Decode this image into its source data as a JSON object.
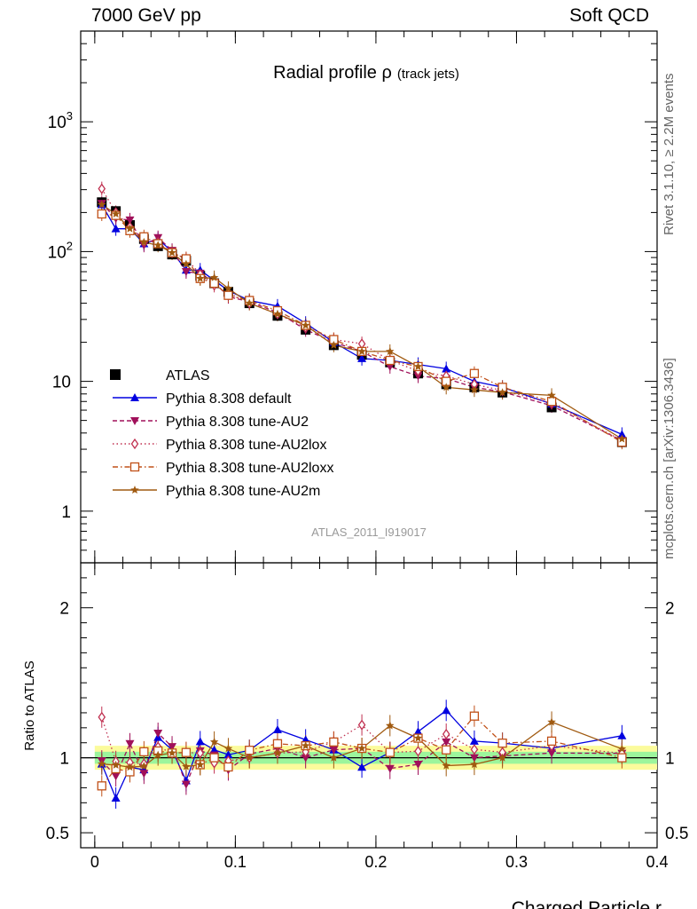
{
  "header": {
    "left": "7000 GeV pp",
    "right": "Soft QCD"
  },
  "side_labels": {
    "rivet": "Rivet 3.1.10, ≥ 2.2M events",
    "source": "mcplots.cern.ch [arXiv:1306.3436]"
  },
  "chart_data": {
    "type": "line",
    "title": "Radial profile ρ",
    "title_sub": "(track jets)",
    "watermark": "ATLAS_2011_I919017",
    "xlabel": "Charged Particle r",
    "ylabel_ratio": "Ratio to ATLAS",
    "xlim": [
      -0.01,
      0.4
    ],
    "ylim_main": [
      0.4,
      5000
    ],
    "yscale_main": "log",
    "ylim_ratio": [
      0.4,
      2.3
    ],
    "x_ticks": [
      "0",
      "0.1",
      "0.2",
      "0.3",
      "0.4"
    ],
    "y_ticks_main": [
      "1",
      "10",
      "10^2",
      "10^3"
    ],
    "y_ticks_ratio": [
      "0.5",
      "1",
      "2"
    ],
    "legend_position": "middle-left",
    "x": [
      0.005,
      0.015,
      0.025,
      0.035,
      0.045,
      0.055,
      0.065,
      0.075,
      0.085,
      0.095,
      0.11,
      0.13,
      0.15,
      0.17,
      0.19,
      0.21,
      0.23,
      0.25,
      0.27,
      0.29,
      0.325,
      0.375
    ],
    "data": {
      "name": "ATLAS",
      "values": [
        240,
        205,
        160,
        125,
        110,
        95,
        85,
        65,
        57,
        49,
        40,
        32,
        25,
        19,
        16,
        14,
        11.5,
        9.5,
        9.0,
        8.2,
        6.3,
        3.4
      ]
    },
    "series": [
      {
        "name": "Pythia 8.308 default",
        "color": "#0000e0",
        "marker": "triangle-up",
        "dash": "",
        "values": [
          230,
          150,
          150,
          115,
          125,
          100,
          72,
          72,
          60,
          50,
          42,
          38,
          28,
          20,
          15,
          14.5,
          13.5,
          12.5,
          10,
          9.0,
          6.7,
          3.9
        ]
      },
      {
        "name": "Pythia 8.308 tune-AU2",
        "color": "#a0105a",
        "marker": "triangle-down",
        "dash": "5,3",
        "values": [
          235,
          180,
          175,
          112,
          128,
          102,
          70,
          68,
          58,
          45,
          41,
          34,
          25,
          20,
          17,
          13,
          11,
          10.5,
          9.0,
          8.3,
          6.5,
          3.5
        ]
      },
      {
        "name": "Pythia 8.308 tune-AU2lox",
        "color": "#c03050",
        "marker": "diamond",
        "dash": "1.5,3",
        "values": [
          305,
          200,
          155,
          120,
          118,
          98,
          88,
          67,
          55,
          48,
          40,
          33,
          26,
          21,
          19.5,
          14.5,
          12,
          11,
          9.5,
          8.5,
          6.8,
          3.5
        ]
      },
      {
        "name": "Pythia 8.308 tune-AU2loxx",
        "color": "#c05018",
        "marker": "square-open",
        "dash": "6,3,1.5,3",
        "values": [
          195,
          190,
          145,
          130,
          115,
          98,
          88,
          62,
          57,
          46,
          42,
          35,
          27,
          21,
          17,
          14.5,
          13,
          10,
          11.5,
          9.0,
          7.0,
          3.4
        ]
      },
      {
        "name": "Pythia 8.308 tune-AU2m",
        "color": "#a05a10",
        "marker": "star",
        "dash": "",
        "values": [
          230,
          195,
          150,
          118,
          112,
          98,
          80,
          62,
          63,
          52,
          40,
          33,
          27,
          19,
          17,
          17,
          13,
          9.0,
          8.6,
          8.2,
          7.8,
          3.6
        ]
      }
    ],
    "ratio_band_inner": 0.04,
    "ratio_band_outer": 0.08
  }
}
